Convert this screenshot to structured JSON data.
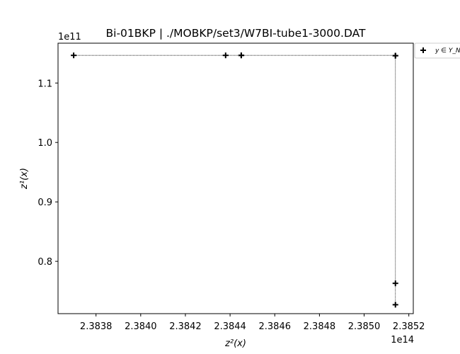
{
  "chart_data": {
    "type": "scatter",
    "title": "Bi-01BKP | ./MOBKP/set3/W7BI-tube1-3000.DAT",
    "xlabel": "z²(x)",
    "ylabel": "z¹(x)",
    "x_offset_label": "1e14",
    "y_offset_label": "1e11",
    "x_scale": 100000000000000.0,
    "y_scale": 100000000000.0,
    "xlim": [
      2.38363,
      2.38522
    ],
    "ylim": [
      0.712,
      1.167
    ],
    "x_ticks": [
      2.3838,
      2.384,
      2.3842,
      2.3844,
      2.3846,
      2.3848,
      2.385,
      2.3852
    ],
    "x_tick_labels": [
      "2.3838",
      "2.3840",
      "2.3842",
      "2.3844",
      "2.3846",
      "2.3848",
      "2.3850",
      "2.3852"
    ],
    "y_ticks": [
      0.8,
      0.9,
      1.0,
      1.1
    ],
    "y_tick_labels": [
      "0.8",
      "0.9",
      "1.0",
      "1.1"
    ],
    "grid": false,
    "legend_position": "outside-top-right",
    "series": [
      {
        "name": "y ∈ Y_N",
        "marker": "plus",
        "color": "#000000",
        "connect": "step-dotted",
        "x": [
          2.3837,
          2.38438,
          2.38445,
          2.38445,
          2.38514,
          2.38514,
          2.38514,
          2.38514
        ],
        "y": [
          1.1465,
          1.1465,
          1.1465,
          1.1465,
          1.146,
          1.146,
          0.763,
          0.727
        ]
      }
    ]
  }
}
